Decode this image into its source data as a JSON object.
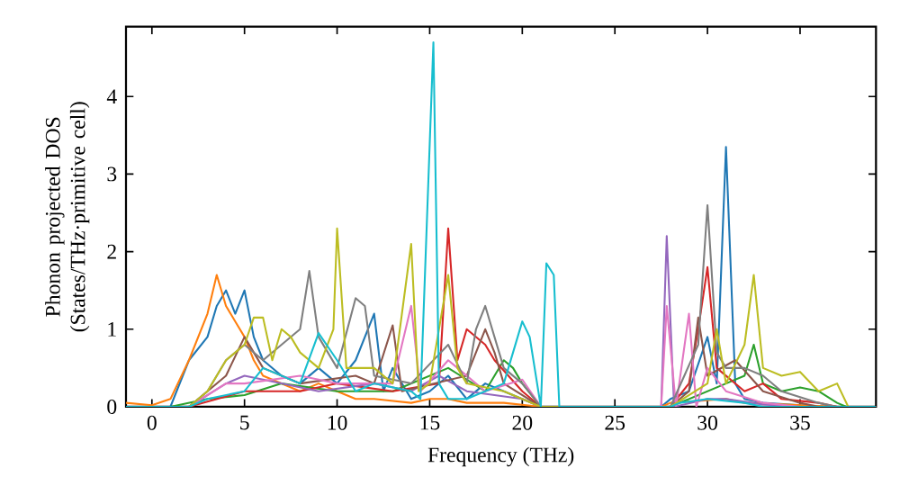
{
  "chart_data": {
    "type": "line",
    "xlabel": "Frequency (THz)",
    "ylabel": "Phonon projected DOS (States/THz·primitive cell)",
    "xlim": [
      -1.4,
      39.1
    ],
    "ylim": [
      0,
      4.9
    ],
    "xticks": [
      0,
      5,
      10,
      15,
      20,
      25,
      30,
      35
    ],
    "yticks": [
      0,
      1,
      2,
      3,
      4
    ],
    "series": [
      {
        "color": "#1f77b4",
        "x": [
          -1.4,
          1,
          2,
          3,
          3.5,
          4,
          4.5,
          5,
          5.5,
          6,
          7,
          8,
          9,
          10,
          11,
          12,
          12.5,
          13,
          14,
          15,
          16,
          17,
          18,
          19,
          20,
          21,
          27.5,
          28,
          29,
          30,
          30.5,
          31,
          31.5,
          32,
          33,
          35,
          37,
          39.1
        ],
        "values": [
          0,
          0,
          0.6,
          0.9,
          1.3,
          1.5,
          1.2,
          1.5,
          0.9,
          0.6,
          0.4,
          0.3,
          0.5,
          0.3,
          0.6,
          1.2,
          0.2,
          0.5,
          0.1,
          0.2,
          0.4,
          0.1,
          0.3,
          0.2,
          0.1,
          0,
          0,
          0.1,
          0.2,
          0.9,
          0.3,
          3.35,
          0.3,
          0.1,
          0.05,
          0.02,
          0,
          0
        ]
      },
      {
        "color": "#ff7f0e",
        "x": [
          -1.4,
          0,
          1,
          2,
          3,
          3.5,
          4,
          4.5,
          5,
          5.5,
          6,
          7,
          8,
          9,
          10,
          11,
          12,
          14,
          15,
          16,
          17,
          19,
          21,
          27.5,
          28,
          30,
          31,
          32,
          34,
          37,
          39.1
        ],
        "values": [
          0.05,
          0.02,
          0.1,
          0.6,
          1.2,
          1.7,
          1.3,
          1.1,
          0.9,
          0.6,
          0.4,
          0.3,
          0.2,
          0.3,
          0.2,
          0.1,
          0.1,
          0.05,
          0.1,
          0.1,
          0.05,
          0.05,
          0,
          0,
          0.05,
          null,
          0.1,
          0.05,
          0.03,
          0,
          0
        ]
      },
      {
        "color": "#2ca02c",
        "x": [
          -1.4,
          1,
          3,
          5,
          7,
          10,
          13,
          16,
          18,
          19,
          19.5,
          20,
          21,
          28,
          30,
          31,
          32,
          32.5,
          33,
          34,
          35,
          36,
          37,
          37.5,
          39.1
        ],
        "values": [
          0,
          0,
          0.1,
          0.15,
          0.3,
          0.2,
          0.2,
          0.5,
          0.2,
          0.6,
          0.5,
          0.3,
          0,
          0,
          0.2,
          0.3,
          0.4,
          0.8,
          0.3,
          0.2,
          0.25,
          0.2,
          0.05,
          0,
          0
        ]
      },
      {
        "color": "#d62728",
        "x": [
          -1.4,
          2,
          5,
          8,
          10,
          13,
          15.5,
          16,
          16.5,
          17,
          18,
          18.5,
          20,
          21,
          28,
          29,
          29.5,
          30,
          30.5,
          32,
          33,
          34,
          36,
          37,
          39.1
        ],
        "values": [
          0,
          0,
          0.2,
          0.2,
          0.3,
          0.2,
          0.3,
          2.3,
          0.6,
          1.0,
          0.8,
          0.6,
          0.2,
          0,
          0,
          0.3,
          1.0,
          1.8,
          0.5,
          0.2,
          0.3,
          0.1,
          0.05,
          0,
          0
        ]
      },
      {
        "color": "#9467bd",
        "x": [
          -1.4,
          2,
          4,
          5,
          7,
          9,
          12,
          14,
          15.5,
          17,
          20,
          21,
          27.5,
          27.8,
          28.2,
          30,
          31,
          33,
          35,
          39.1
        ],
        "values": [
          0,
          0,
          0.3,
          0.4,
          0.3,
          0.2,
          0.3,
          0.2,
          0.4,
          0.2,
          0.1,
          0,
          0,
          2.2,
          0,
          0.1,
          0.1,
          0.03,
          0,
          0
        ]
      },
      {
        "color": "#8c564b",
        "x": [
          -1.4,
          2,
          4,
          5,
          6,
          8,
          11,
          12,
          13,
          13.5,
          17,
          18,
          18.5,
          19,
          21,
          28,
          29,
          29.5,
          30,
          31.5,
          33,
          35,
          36,
          39.1
        ],
        "values": [
          0,
          0,
          0.4,
          0.9,
          0.5,
          0.3,
          0.4,
          0.3,
          1.05,
          0.2,
          0.4,
          1.0,
          0.7,
          0.3,
          0,
          0,
          0.2,
          1.15,
          0.4,
          0.6,
          0.2,
          0.05,
          0,
          0
        ]
      },
      {
        "color": "#e377c2",
        "x": [
          -1.4,
          2,
          4,
          5,
          8,
          10,
          13,
          14,
          14.5,
          16,
          16.5,
          18,
          20,
          21,
          27.5,
          27.8,
          28.3,
          29,
          29.4,
          30,
          31,
          33,
          35,
          39.1
        ],
        "values": [
          0,
          0,
          0.3,
          0.3,
          0.4,
          0.3,
          0.3,
          1.3,
          0.2,
          0.6,
          0.5,
          0.2,
          0.35,
          0,
          0,
          1.3,
          0,
          1.2,
          0,
          0.5,
          0.2,
          0.05,
          0,
          0
        ]
      },
      {
        "color": "#7f7f7f",
        "x": [
          -1.4,
          2,
          3,
          4,
          5,
          6,
          7,
          8,
          8.5,
          9,
          10,
          11,
          11.5,
          12,
          14,
          16,
          17,
          17.5,
          18,
          18.5,
          19,
          20,
          21,
          28,
          29.5,
          30,
          30.5,
          31,
          32,
          33,
          34,
          36,
          37,
          39.1
        ],
        "values": [
          0,
          0,
          0.2,
          0.6,
          0.8,
          0.6,
          0.8,
          1.0,
          1.75,
          0.9,
          0.5,
          1.4,
          1.3,
          0.4,
          0.3,
          0.8,
          0.3,
          1.0,
          1.3,
          0.9,
          0.5,
          0.3,
          0,
          0,
          0.8,
          2.6,
          0.7,
          0.5,
          0.5,
          0.4,
          0.2,
          0.05,
          0,
          0
        ]
      },
      {
        "color": "#bcbd22",
        "x": [
          -1.4,
          2,
          3,
          4,
          5,
          5.5,
          6,
          6.5,
          7,
          7.5,
          8,
          9,
          9.8,
          10,
          10.5,
          12,
          13,
          14,
          14.4,
          15,
          16,
          16.5,
          17,
          19,
          20,
          21,
          28,
          30,
          30.5,
          31,
          32,
          32.5,
          33,
          34,
          35,
          36,
          37,
          37.6,
          39.1
        ],
        "values": [
          0,
          0,
          0.2,
          0.6,
          0.8,
          1.15,
          1.15,
          0.6,
          1.0,
          0.9,
          0.7,
          0.5,
          1.0,
          2.3,
          0.5,
          0.5,
          0.3,
          2.1,
          0.2,
          0.3,
          1.7,
          0.5,
          0.3,
          0.2,
          0.1,
          0,
          0,
          0.3,
          1.0,
          0.3,
          0.8,
          1.7,
          0.5,
          0.4,
          0.45,
          0.2,
          0.3,
          0,
          0
        ]
      },
      {
        "color": "#17becf",
        "x": [
          -1.4,
          2,
          3,
          5,
          6,
          8,
          9,
          10,
          11,
          12,
          14,
          14.5,
          15.2,
          15.5,
          16,
          17,
          19,
          20,
          20.4,
          21,
          21.3,
          21.7,
          22,
          28,
          28.5,
          30,
          32,
          33,
          39.1
        ],
        "values": [
          0,
          0,
          0.1,
          0.2,
          0.5,
          0.3,
          0.95,
          0.6,
          0.2,
          0.3,
          0.2,
          0.1,
          4.7,
          0.3,
          0.1,
          0.1,
          0.3,
          1.1,
          0.9,
          0,
          1.85,
          1.7,
          0,
          0,
          0.05,
          0.1,
          0.05,
          0,
          0
        ]
      }
    ]
  }
}
